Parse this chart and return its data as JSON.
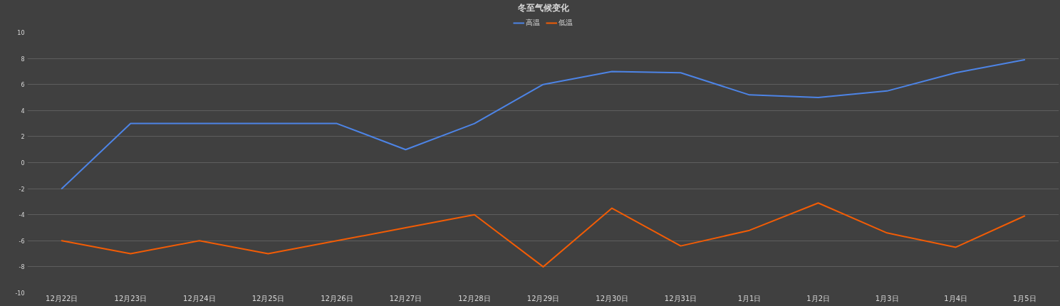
{
  "chart_data": {
    "type": "line",
    "title": "冬至气候变化",
    "categories": [
      "12月22日",
      "12月23日",
      "12月24日",
      "12月25日",
      "12月26日",
      "12月27日",
      "12月28日",
      "12月29日",
      "12月30日",
      "12月31日",
      "1月1日",
      "1月2日",
      "1月3日",
      "1月4日",
      "1月5日"
    ],
    "series": [
      {
        "name": "高温",
        "color": "#4d84e6",
        "values": [
          -2,
          3,
          3,
          3,
          3,
          1,
          3,
          6,
          7,
          6.9,
          5.2,
          5,
          5.5,
          6.9,
          7.9
        ]
      },
      {
        "name": "低温",
        "color": "#f25c05",
        "values": [
          -6,
          -7,
          -6,
          -7,
          -6,
          -5,
          -4,
          -8,
          -3.5,
          -6.4,
          -5.2,
          -3.1,
          -5.4,
          -6.5,
          -4.1
        ]
      }
    ],
    "ylim": [
      -10,
      10
    ],
    "yticks": [
      -10,
      -8,
      -6,
      -4,
      -2,
      0,
      2,
      4,
      6,
      8,
      10
    ],
    "grid": "y",
    "legend": "top",
    "line_style": "solid"
  }
}
